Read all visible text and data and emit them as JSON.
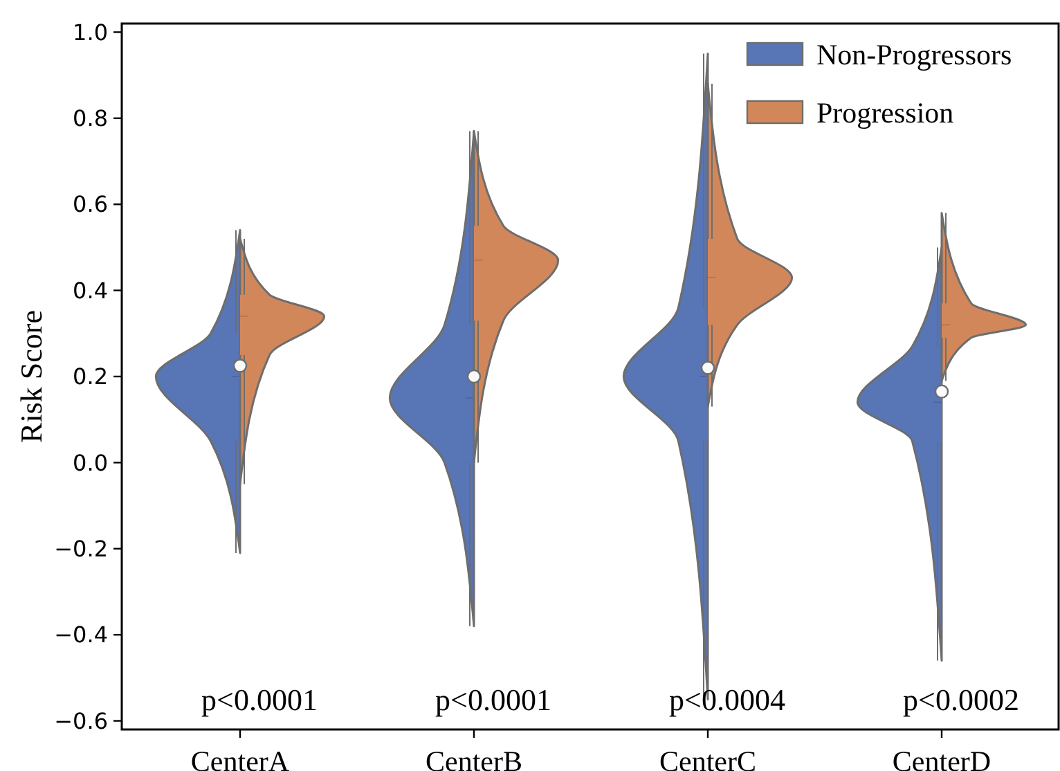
{
  "chart_data": {
    "type": "box",
    "ylabel": "Risk Score",
    "categories": [
      "CenterA",
      "CenterB",
      "CenterC",
      "CenterD"
    ],
    "ylim": [
      -0.62,
      1.02
    ],
    "yticks": [
      {
        "value": -0.6,
        "label": "−0.6"
      },
      {
        "value": -0.4,
        "label": "−0.4"
      },
      {
        "value": -0.2,
        "label": "−0.2"
      },
      {
        "value": 0,
        "label": "0.0"
      },
      {
        "value": 0.2,
        "label": "0.2"
      },
      {
        "value": 0.4,
        "label": "0.4"
      },
      {
        "value": 0.6,
        "label": "0.6"
      },
      {
        "value": 0.8,
        "label": "0.8"
      },
      {
        "value": 1,
        "label": "1.0"
      }
    ],
    "series": [
      {
        "name": "Non-Progressors",
        "color": "#5875b6",
        "boxes": [
          {
            "low": -0.21,
            "q1": 0.05,
            "median": 0.2,
            "q3": 0.3,
            "high": 0.54
          },
          {
            "low": -0.38,
            "q1": 0.0,
            "median": 0.15,
            "q3": 0.32,
            "high": 0.77
          },
          {
            "low": -0.55,
            "q1": 0.05,
            "median": 0.2,
            "q3": 0.36,
            "high": 0.95
          },
          {
            "low": -0.46,
            "q1": 0.05,
            "median": 0.14,
            "q3": 0.27,
            "high": 0.5
          }
        ]
      },
      {
        "name": "Progression",
        "color": "#d2875b",
        "boxes": [
          {
            "low": -0.05,
            "q1": 0.25,
            "median": 0.34,
            "q3": 0.39,
            "high": 0.52
          },
          {
            "low": 0.0,
            "q1": 0.33,
            "median": 0.47,
            "q3": 0.55,
            "high": 0.77
          },
          {
            "low": 0.13,
            "q1": 0.32,
            "median": 0.43,
            "q3": 0.52,
            "high": 0.88
          },
          {
            "low": 0.19,
            "q1": 0.29,
            "median": 0.32,
            "q3": 0.37,
            "high": 0.58
          }
        ]
      },
      {
        "type": "scatter",
        "color": "#fafafa",
        "x": [
          "CenterA",
          "CenterB",
          "CenterC",
          "CenterD"
        ],
        "values": [
          0.225,
          0.2,
          0.22,
          0.165
        ]
      }
    ],
    "marker": "circle",
    "legend": "top right",
    "annotations": [
      "p<0.0001",
      "p<0.0001",
      "p<0.0004",
      "p<0.0002"
    ]
  }
}
